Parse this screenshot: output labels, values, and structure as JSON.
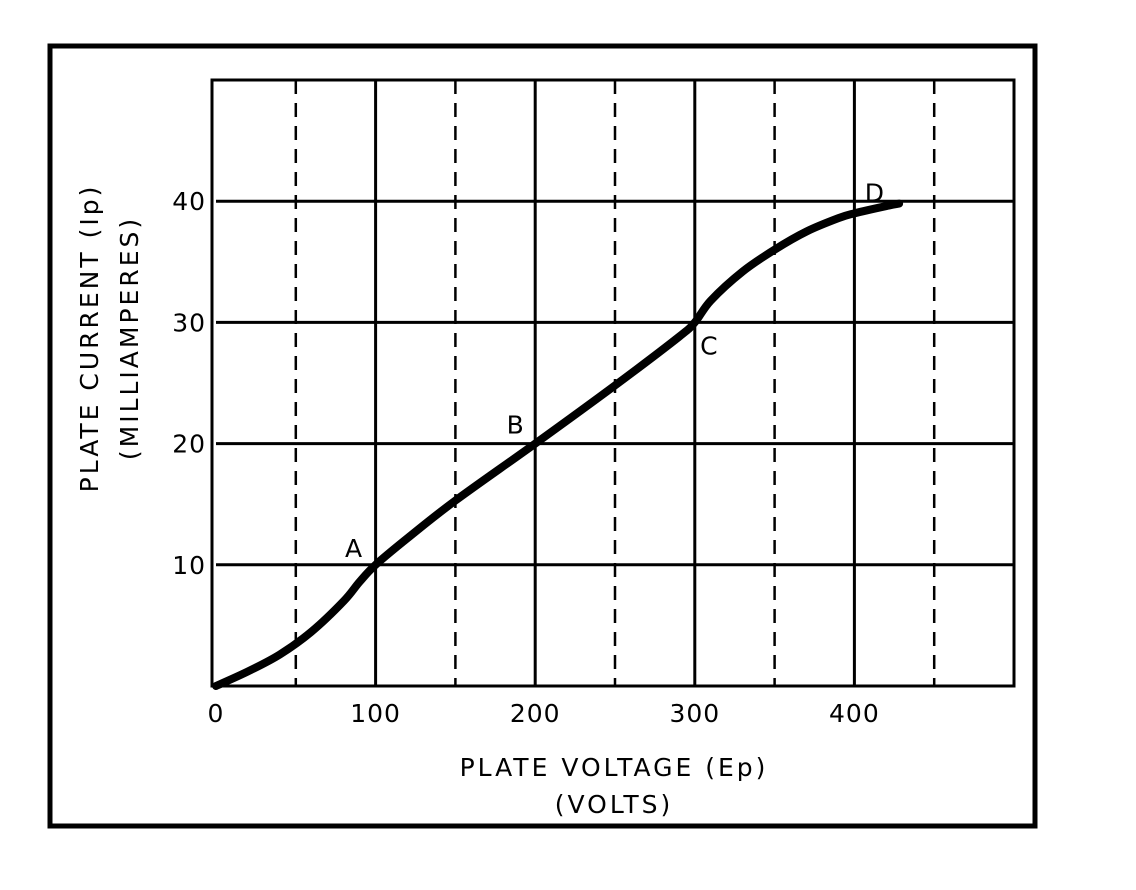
{
  "chart_data": {
    "type": "line",
    "xlabel": "PLATE VOLTAGE (Ep)",
    "xlabel_unit": "(VOLTS)",
    "ylabel": "PLATE CURRENT (Ip)",
    "ylabel_unit": "(MILLIAMPERES)",
    "xlim": [
      0,
      500
    ],
    "ylim": [
      0,
      50
    ],
    "x_ticks": [
      0,
      100,
      200,
      300,
      400
    ],
    "y_ticks": [
      10,
      20,
      30,
      40
    ],
    "x_tick_labels": [
      "0",
      "100",
      "200",
      "300",
      "400"
    ],
    "y_tick_labels": [
      "10",
      "20",
      "30",
      "40"
    ],
    "grid": true,
    "x_minor_grid": [
      50,
      150,
      250,
      350,
      450
    ],
    "x_minor_grid_style": "dashed",
    "series": [
      {
        "x": [
          0,
          20,
          40,
          60,
          80,
          90,
          100,
          120,
          150,
          200,
          250,
          290,
          300,
          310,
          330,
          350,
          370,
          390,
          400,
          420,
          428
        ],
        "y": [
          0,
          1.2,
          2.6,
          4.5,
          7.0,
          8.6,
          10,
          12.2,
          15.3,
          20,
          24.8,
          28.8,
          30,
          31.8,
          34.2,
          36.0,
          37.5,
          38.6,
          39.0,
          39.6,
          39.8
        ]
      }
    ],
    "annotations": [
      {
        "text": "A",
        "x": 100,
        "y": 10
      },
      {
        "text": "B",
        "x": 200,
        "y": 20
      },
      {
        "text": "C",
        "x": 300,
        "y": 30
      },
      {
        "text": "D",
        "x": 400,
        "y": 39
      }
    ]
  }
}
